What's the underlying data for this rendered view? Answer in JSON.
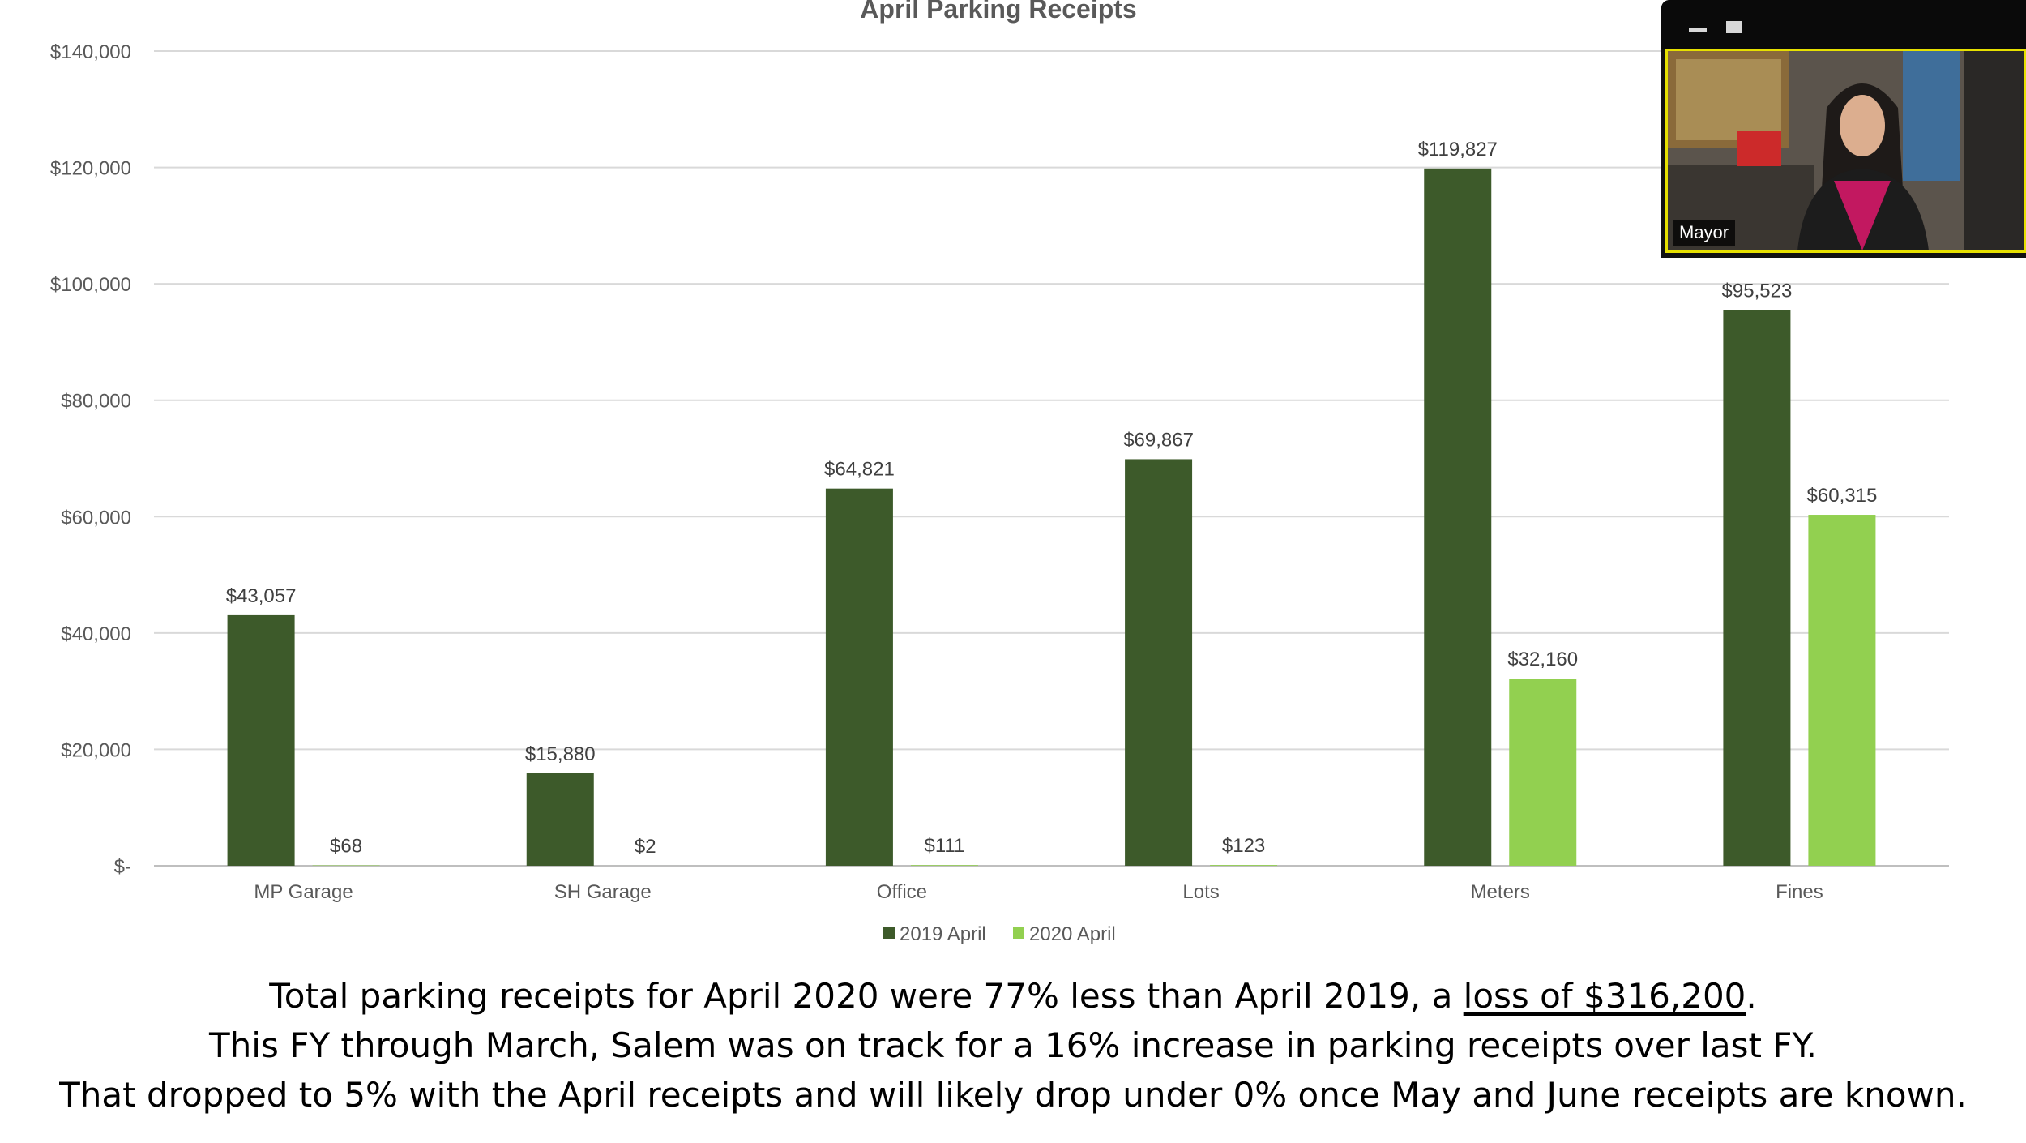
{
  "chart_data": {
    "type": "bar",
    "title": "April Parking Receipts",
    "categories": [
      "MP Garage",
      "SH Garage",
      "Office",
      "Lots",
      "Meters",
      "Fines"
    ],
    "series": [
      {
        "name": "2019 April",
        "color": "#3d5a2a",
        "values": [
          43057,
          15880,
          64821,
          69867,
          119827,
          95523
        ],
        "labels": [
          "$43,057",
          "$15,880",
          "$64,821",
          "$69,867",
          "$119,827",
          "$95,523"
        ]
      },
      {
        "name": "2020 April",
        "color": "#92d050",
        "values": [
          68,
          2,
          111,
          123,
          32160,
          60315
        ],
        "labels": [
          "$68",
          "$2",
          "$111",
          "$123",
          "$32,160",
          "$60,315"
        ]
      }
    ],
    "yticks": [
      0,
      20000,
      40000,
      60000,
      80000,
      100000,
      120000,
      140000
    ],
    "ytick_labels": [
      "$-",
      "$20,000",
      "$40,000",
      "$60,000",
      "$80,000",
      "$100,000",
      "$120,000",
      "$140,000"
    ],
    "ylim": [
      0,
      140000
    ],
    "grid": true,
    "legend": "bottom-center"
  },
  "caption": {
    "line1_a": "Total parking receipts for April 2020 were 77% less than April 2019, a ",
    "line1_link": "loss of $316,200",
    "line1_b": ".",
    "line2": "This FY through March, Salem was on track for a 16% increase in parking receipts over last FY.",
    "line3": "That dropped to 5% with the April receipts and will likely drop under 0% once May and June receipts are known."
  },
  "video": {
    "participant_name": "Mayor",
    "highlight_color": "#e6e000"
  }
}
